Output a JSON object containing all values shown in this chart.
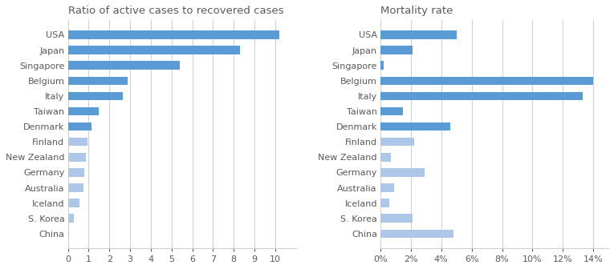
{
  "countries": [
    "USA",
    "Japan",
    "Singapore",
    "Belgium",
    "Italy",
    "Taiwan",
    "Denmark",
    "Finland",
    "New Zealand",
    "Germany",
    "Australia",
    "Iceland",
    "S. Korea",
    "China"
  ],
  "ratio_values": [
    10.2,
    8.3,
    5.4,
    2.9,
    2.65,
    1.5,
    1.15,
    0.95,
    0.85,
    0.8,
    0.75,
    0.55,
    0.3,
    0.05
  ],
  "ratio_colors": [
    "#5b9bd5",
    "#5b9bd5",
    "#5b9bd5",
    "#5b9bd5",
    "#5b9bd5",
    "#5b9bd5",
    "#5b9bd5",
    "#aec6e8",
    "#aec6e8",
    "#aec6e8",
    "#aec6e8",
    "#aec6e8",
    "#aec6e8",
    "#aec6e8"
  ],
  "mortality_values": [
    0.05,
    0.021,
    0.002,
    0.14,
    0.133,
    0.015,
    0.046,
    0.022,
    0.007,
    0.029,
    0.009,
    0.006,
    0.021,
    0.048
  ],
  "mortality_colors": [
    "#5b9bd5",
    "#5b9bd5",
    "#5b9bd5",
    "#5b9bd5",
    "#5b9bd5",
    "#5b9bd5",
    "#5b9bd5",
    "#aec6e8",
    "#aec6e8",
    "#aec6e8",
    "#aec6e8",
    "#aec6e8",
    "#aec6e8",
    "#aec6e8"
  ],
  "title1": "Ratio of active cases to recovered cases",
  "title2": "Mortality rate",
  "xlim1": [
    0,
    11
  ],
  "xlim2": [
    0,
    0.15
  ],
  "xticks1": [
    0,
    1,
    2,
    3,
    4,
    5,
    6,
    7,
    8,
    9,
    10
  ],
  "xticks2": [
    0,
    0.02,
    0.04,
    0.06,
    0.08,
    0.1,
    0.12,
    0.14
  ],
  "background_color": "#ffffff",
  "title_fontsize": 9.5,
  "label_fontsize": 8,
  "tick_fontsize": 8,
  "bar_height": 0.55,
  "grid_color": "#d0d0d0",
  "title_color": "#595959",
  "text_color": "#595959"
}
